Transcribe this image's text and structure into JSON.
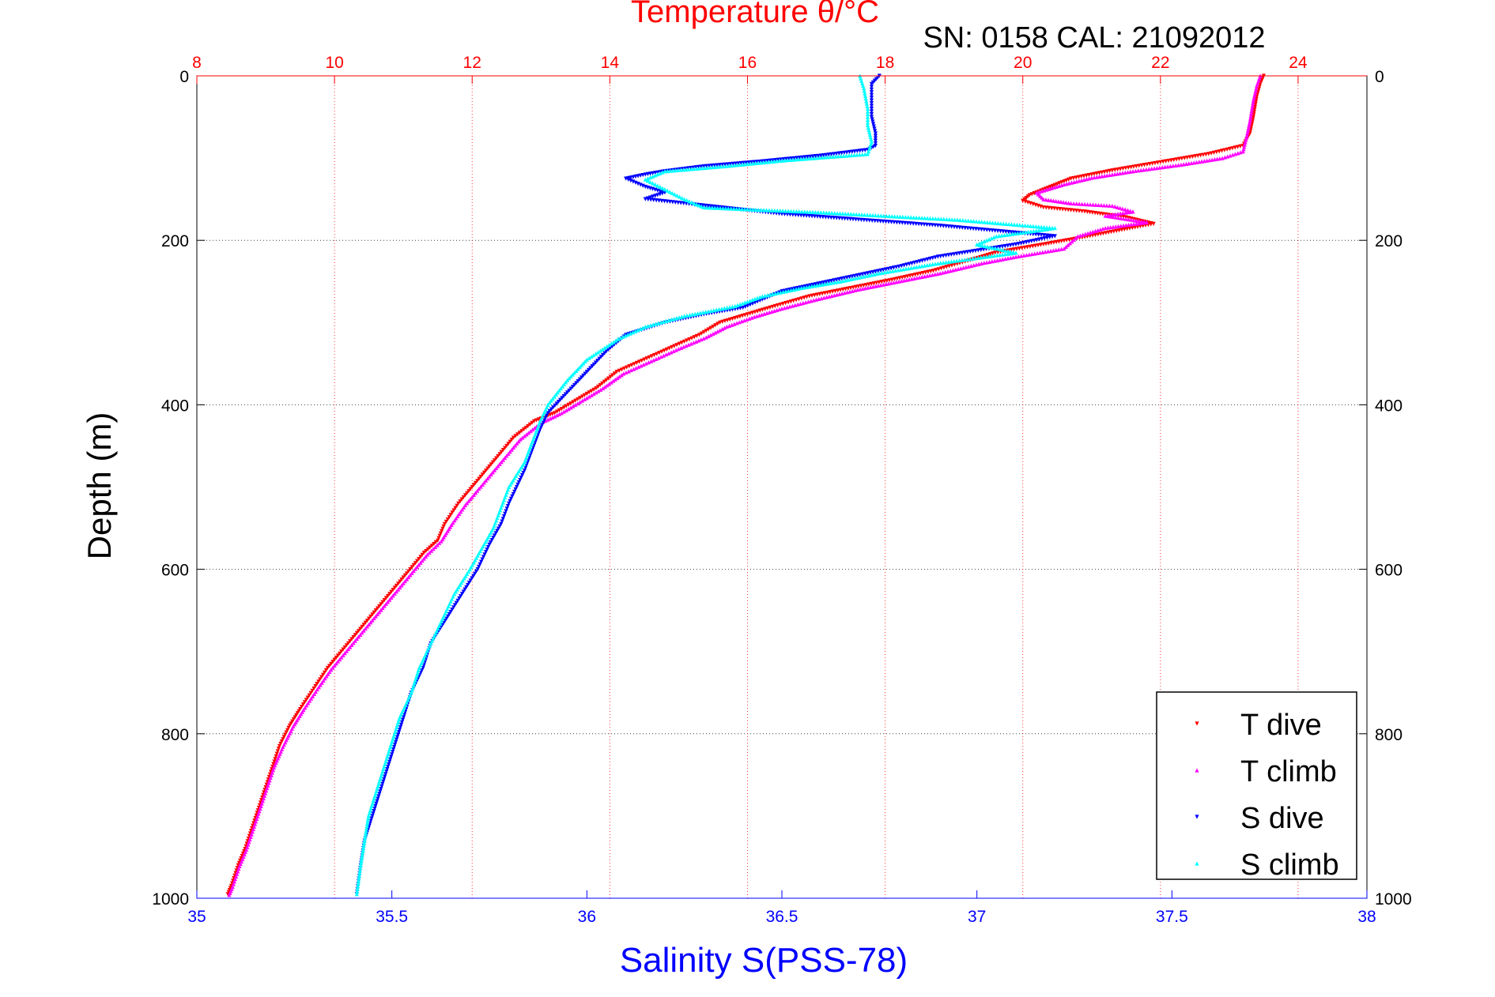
{
  "header": {
    "title": "Temperature θ/°C",
    "info": "SN: 0158  CAL: 21092012"
  },
  "axes": {
    "ylabel": "Depth (m)",
    "xlabel_bottom": "Salinity S(PSS-78)",
    "xlabel_top": "Temperature θ/°C"
  },
  "colors": {
    "t_dive": "#ff0000",
    "t_climb": "#ff00ff",
    "s_dive": "#0000ff",
    "s_climb": "#00ffff",
    "top_axis": "#ff0000",
    "bottom_axis": "#0000ff",
    "frame": "#000000"
  },
  "chart_data": {
    "type": "scatter",
    "title": "Temperature θ/°C",
    "ylabel": "Depth (m)",
    "ylim": [
      0,
      1000
    ],
    "y_inverted": true,
    "y_ticks": [
      0,
      200,
      400,
      600,
      800,
      1000
    ],
    "x_top": {
      "label": "Temperature θ/°C",
      "range": [
        8,
        25
      ],
      "ticks": [
        8,
        10,
        12,
        14,
        16,
        18,
        20,
        22,
        24
      ]
    },
    "x_bottom": {
      "label": "Salinity S(PSS-78)",
      "range": [
        35,
        38
      ],
      "ticks": [
        "35",
        "35.5",
        "36",
        "36.5",
        "37",
        "37.5",
        "38"
      ]
    },
    "grid": true,
    "legend_position": "bottom-right",
    "series": [
      {
        "name": "T dive",
        "axis": "temperature",
        "marker": "triangle-down",
        "points": [
          [
            23.5,
            0
          ],
          [
            23.45,
            10
          ],
          [
            23.4,
            25
          ],
          [
            23.35,
            50
          ],
          [
            23.3,
            70
          ],
          [
            23.2,
            85
          ],
          [
            22.7,
            95
          ],
          [
            22,
            105
          ],
          [
            21.3,
            115
          ],
          [
            20.7,
            125
          ],
          [
            20.4,
            135
          ],
          [
            20.1,
            145
          ],
          [
            20,
            152
          ],
          [
            20.3,
            160
          ],
          [
            20.9,
            165
          ],
          [
            21.5,
            172
          ],
          [
            21.9,
            180
          ],
          [
            21.4,
            188
          ],
          [
            20.9,
            196
          ],
          [
            20.3,
            205
          ],
          [
            19.6,
            215
          ],
          [
            19.2,
            225
          ],
          [
            18.7,
            237
          ],
          [
            18.1,
            248
          ],
          [
            17.5,
            258
          ],
          [
            16.9,
            268
          ],
          [
            16.4,
            280
          ],
          [
            16.0,
            290
          ],
          [
            15.6,
            300
          ],
          [
            15.3,
            315
          ],
          [
            14.9,
            330
          ],
          [
            14.5,
            345
          ],
          [
            14.1,
            360
          ],
          [
            13.8,
            380
          ],
          [
            13.5,
            395
          ],
          [
            13.2,
            410
          ],
          [
            12.9,
            420
          ],
          [
            12.6,
            440
          ],
          [
            12.4,
            460
          ],
          [
            12.2,
            480
          ],
          [
            12.0,
            500
          ],
          [
            11.8,
            520
          ],
          [
            11.6,
            545
          ],
          [
            11.5,
            565
          ],
          [
            11.3,
            580
          ],
          [
            11.1,
            600
          ],
          [
            10.9,
            620
          ],
          [
            10.7,
            640
          ],
          [
            10.5,
            660
          ],
          [
            10.3,
            680
          ],
          [
            10.1,
            700
          ],
          [
            9.9,
            720
          ],
          [
            9.7,
            745
          ],
          [
            9.5,
            770
          ],
          [
            9.35,
            790
          ],
          [
            9.2,
            815
          ],
          [
            9.1,
            840
          ],
          [
            9.0,
            865
          ],
          [
            8.9,
            890
          ],
          [
            8.8,
            915
          ],
          [
            8.7,
            940
          ],
          [
            8.6,
            960
          ],
          [
            8.5,
            985
          ],
          [
            8.45,
            995
          ]
        ]
      },
      {
        "name": "T climb",
        "axis": "temperature",
        "marker": "triangle-up",
        "points": [
          [
            23.45,
            0
          ],
          [
            23.4,
            12
          ],
          [
            23.35,
            30
          ],
          [
            23.3,
            55
          ],
          [
            23.25,
            75
          ],
          [
            23.2,
            92
          ],
          [
            22.9,
            100
          ],
          [
            22.3,
            108
          ],
          [
            21.6,
            116
          ],
          [
            21.0,
            124
          ],
          [
            20.6,
            132
          ],
          [
            20.2,
            142
          ],
          [
            20.3,
            150
          ],
          [
            20.7,
            155
          ],
          [
            21.3,
            158
          ],
          [
            21.6,
            165
          ],
          [
            21.2,
            170
          ],
          [
            21.8,
            178
          ],
          [
            21.2,
            185
          ],
          [
            20.8,
            195
          ],
          [
            20.6,
            210
          ],
          [
            19.9,
            220
          ],
          [
            19.4,
            228
          ],
          [
            18.8,
            240
          ],
          [
            18.2,
            250
          ],
          [
            17.6,
            260
          ],
          [
            17.0,
            272
          ],
          [
            16.5,
            283
          ],
          [
            16.1,
            293
          ],
          [
            15.7,
            305
          ],
          [
            15.4,
            318
          ],
          [
            15.0,
            332
          ],
          [
            14.6,
            347
          ],
          [
            14.2,
            362
          ],
          [
            13.9,
            380
          ],
          [
            13.6,
            395
          ],
          [
            13.3,
            410
          ],
          [
            13.0,
            422
          ],
          [
            12.7,
            442
          ],
          [
            12.5,
            462
          ],
          [
            12.3,
            482
          ],
          [
            12.1,
            502
          ],
          [
            11.9,
            522
          ],
          [
            11.7,
            546
          ],
          [
            11.55,
            566
          ],
          [
            11.35,
            582
          ],
          [
            11.15,
            602
          ],
          [
            10.95,
            622
          ],
          [
            10.75,
            642
          ],
          [
            10.55,
            662
          ],
          [
            10.35,
            682
          ],
          [
            10.15,
            702
          ],
          [
            9.95,
            722
          ],
          [
            9.75,
            746
          ],
          [
            9.55,
            771
          ],
          [
            9.4,
            791
          ],
          [
            9.25,
            816
          ],
          [
            9.12,
            841
          ],
          [
            9.02,
            866
          ],
          [
            8.92,
            891
          ],
          [
            8.82,
            916
          ],
          [
            8.72,
            941
          ],
          [
            8.62,
            961
          ],
          [
            8.52,
            986
          ],
          [
            8.47,
            996
          ]
        ]
      },
      {
        "name": "S dive",
        "axis": "salinity",
        "marker": "triangle-down",
        "points": [
          [
            36.75,
            0
          ],
          [
            36.73,
            10
          ],
          [
            36.73,
            30
          ],
          [
            36.73,
            50
          ],
          [
            36.74,
            70
          ],
          [
            36.74,
            85
          ],
          [
            36.72,
            90
          ],
          [
            36.6,
            97
          ],
          [
            36.45,
            104
          ],
          [
            36.3,
            110
          ],
          [
            36.2,
            116
          ],
          [
            36.15,
            120
          ],
          [
            36.1,
            125
          ],
          [
            36.15,
            135
          ],
          [
            36.2,
            142
          ],
          [
            36.15,
            150
          ],
          [
            36.5,
            168
          ],
          [
            36.9,
            182
          ],
          [
            37.2,
            195
          ],
          [
            37.1,
            205
          ],
          [
            36.9,
            220
          ],
          [
            36.8,
            232
          ],
          [
            36.7,
            242
          ],
          [
            36.6,
            252
          ],
          [
            36.5,
            262
          ],
          [
            36.45,
            272
          ],
          [
            36.4,
            282
          ],
          [
            36.3,
            290
          ],
          [
            36.2,
            300
          ],
          [
            36.1,
            315
          ],
          [
            36.05,
            335
          ],
          [
            36.0,
            360
          ],
          [
            35.95,
            385
          ],
          [
            35.9,
            410
          ],
          [
            35.88,
            430
          ],
          [
            35.86,
            455
          ],
          [
            35.84,
            480
          ],
          [
            35.82,
            500
          ],
          [
            35.8,
            520
          ],
          [
            35.78,
            545
          ],
          [
            35.75,
            570
          ],
          [
            35.72,
            600
          ],
          [
            35.68,
            630
          ],
          [
            35.64,
            660
          ],
          [
            35.6,
            690
          ],
          [
            35.58,
            720
          ],
          [
            35.55,
            750
          ],
          [
            35.53,
            780
          ],
          [
            35.51,
            810
          ],
          [
            35.49,
            840
          ],
          [
            35.47,
            870
          ],
          [
            35.45,
            900
          ],
          [
            35.43,
            930
          ],
          [
            35.42,
            960
          ],
          [
            35.41,
            995
          ]
        ]
      },
      {
        "name": "S climb",
        "axis": "salinity",
        "marker": "triangle-up",
        "points": [
          [
            36.7,
            0
          ],
          [
            36.71,
            15
          ],
          [
            36.72,
            40
          ],
          [
            36.72,
            60
          ],
          [
            36.73,
            80
          ],
          [
            36.72,
            95
          ],
          [
            36.5,
            103
          ],
          [
            36.35,
            110
          ],
          [
            36.2,
            116
          ],
          [
            36.15,
            126
          ],
          [
            36.2,
            138
          ],
          [
            36.25,
            150
          ],
          [
            36.3,
            160
          ],
          [
            36.6,
            166
          ],
          [
            36.95,
            175
          ],
          [
            37.2,
            185
          ],
          [
            37.05,
            195
          ],
          [
            37.0,
            205
          ],
          [
            37.1,
            215
          ],
          [
            36.9,
            228
          ],
          [
            36.75,
            240
          ],
          [
            36.65,
            250
          ],
          [
            36.55,
            258
          ],
          [
            36.45,
            268
          ],
          [
            36.38,
            280
          ],
          [
            36.25,
            292
          ],
          [
            36.15,
            305
          ],
          [
            36.08,
            320
          ],
          [
            36.0,
            345
          ],
          [
            35.95,
            370
          ],
          [
            35.9,
            400
          ],
          [
            35.88,
            420
          ],
          [
            35.86,
            445
          ],
          [
            35.84,
            470
          ],
          [
            35.8,
            500
          ],
          [
            35.78,
            525
          ],
          [
            35.76,
            550
          ],
          [
            35.73,
            575
          ],
          [
            35.7,
            600
          ],
          [
            35.66,
            630
          ],
          [
            35.63,
            660
          ],
          [
            35.6,
            690
          ],
          [
            35.57,
            720
          ],
          [
            35.55,
            750
          ],
          [
            35.52,
            780
          ],
          [
            35.5,
            810
          ],
          [
            35.48,
            840
          ],
          [
            35.46,
            870
          ],
          [
            35.44,
            900
          ],
          [
            35.43,
            930
          ],
          [
            35.42,
            960
          ],
          [
            35.41,
            995
          ]
        ]
      }
    ]
  }
}
